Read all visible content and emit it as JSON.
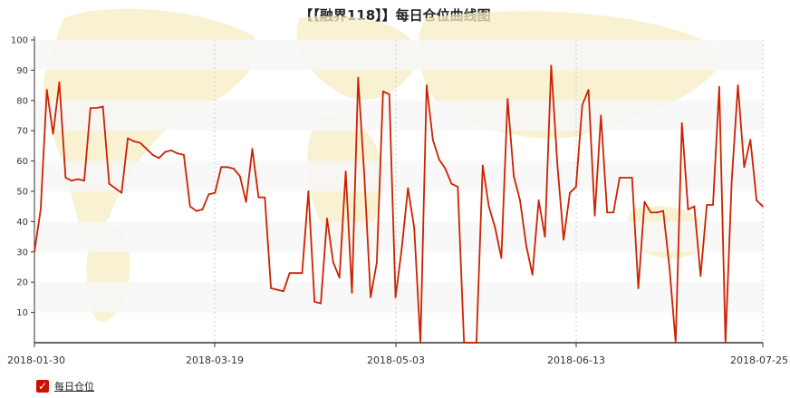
{
  "chart_data": {
    "type": "line",
    "title": "【【融界118】】每日仓位曲线图",
    "xlabel": "",
    "ylabel": "",
    "ylim": [
      0,
      100
    ],
    "yticks": [
      10,
      20,
      30,
      40,
      50,
      60,
      70,
      80,
      90,
      100
    ],
    "x_tick_labels": [
      "2018-01-30",
      "2018-03-19",
      "2018-05-03",
      "2018-06-13",
      "2018-07-25"
    ],
    "grid": "horizontal bands + vertical dashed",
    "legend_position": "bottom-left",
    "colors": {
      "line": "#cc2200",
      "band": "#f7f7f7",
      "legend_box": "#cc1100"
    },
    "series": [
      {
        "name": "每日仓位",
        "values": [
          30,
          44,
          83.5,
          69,
          86,
          54.5,
          53.5,
          54,
          53.5,
          77.5,
          77.5,
          78,
          52.5,
          51,
          49.5,
          67.5,
          66.5,
          66,
          64,
          62,
          61,
          63,
          63.5,
          62.5,
          62,
          45,
          43.5,
          44,
          49,
          49.5,
          58,
          58,
          57.5,
          55,
          46.5,
          64,
          48,
          48,
          18,
          17.5,
          17,
          23,
          23,
          23,
          50,
          13.5,
          13,
          41,
          26.5,
          21.5,
          56.5,
          16.5,
          87.5,
          55,
          15,
          26.5,
          83,
          82,
          15,
          31,
          51,
          38,
          0,
          85,
          67,
          60.5,
          57.5,
          52.5,
          51.5,
          0,
          0,
          0,
          58.5,
          45,
          38,
          28,
          80.5,
          55,
          47,
          32,
          22.5,
          47,
          35,
          91.5,
          59,
          34,
          49.5,
          51.5,
          78.5,
          83.5,
          42,
          75,
          43,
          43,
          54.5,
          54.5,
          54.5,
          18,
          46.5,
          43,
          43,
          43.5,
          25,
          0,
          72.5,
          44,
          45,
          22,
          45.5,
          45.5,
          84.5,
          0,
          53,
          85,
          58,
          67,
          47,
          45
        ]
      }
    ]
  },
  "legend": {
    "label": "每日仓位",
    "check": "✓"
  }
}
